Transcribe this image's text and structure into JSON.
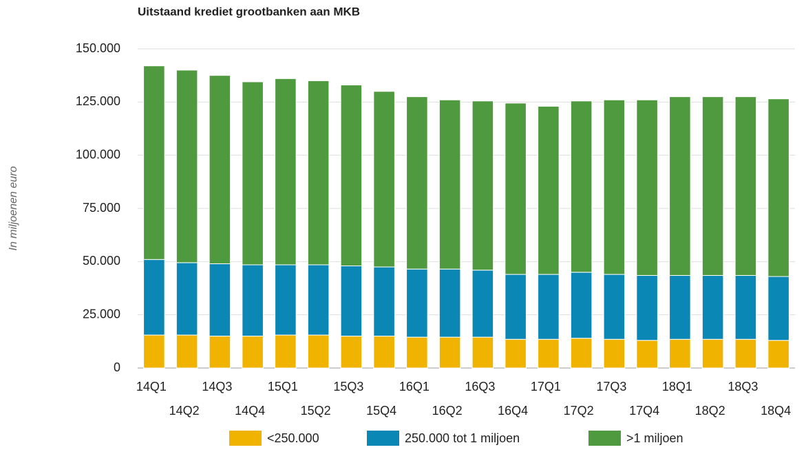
{
  "chart_data": {
    "type": "stacked_bar",
    "title": "Uitstaand krediet grootbanken aan MKB",
    "y_label": "In miljoenen euro",
    "categories": [
      "14Q1",
      "14Q2",
      "14Q3",
      "14Q4",
      "15Q1",
      "15Q2",
      "15Q3",
      "15Q4",
      "16Q1",
      "16Q2",
      "16Q3",
      "16Q4",
      "17Q1",
      "17Q2",
      "17Q3",
      "17Q4",
      "18Q1",
      "18Q2",
      "18Q3",
      "18Q4"
    ],
    "series": [
      {
        "name": "<250.000",
        "color": "#f0b400",
        "values": [
          15500,
          15500,
          15000,
          15000,
          15500,
          15500,
          15000,
          15000,
          14500,
          14500,
          14500,
          13500,
          13500,
          14000,
          13500,
          13000,
          13500,
          13500,
          13500,
          13000
        ]
      },
      {
        "name": "250.000 tot 1 miljoen",
        "color": "#0a87b5",
        "values": [
          35500,
          34000,
          34000,
          33500,
          33000,
          33000,
          33000,
          32500,
          32000,
          32000,
          31500,
          30500,
          30500,
          31000,
          30500,
          30500,
          30000,
          30000,
          30000,
          30000
        ]
      },
      {
        "name": ">1 miljoen",
        "color": "#4f9a3f",
        "values": [
          91000,
          90500,
          88500,
          86000,
          87500,
          86500,
          85000,
          82500,
          81000,
          79500,
          79500,
          80500,
          79000,
          80500,
          82000,
          82500,
          84000,
          84000,
          84000,
          83500
        ]
      }
    ],
    "ylim": [
      0,
      150000
    ],
    "yticks": [
      0,
      {
        "value": 25000,
        "label": "25.000"
      },
      {
        "value": 50000,
        "label": "50.000"
      },
      {
        "value": 75000,
        "label": "75.000"
      },
      {
        "value": 100000,
        "label": "100.000"
      },
      {
        "value": 125000,
        "label": "125.000"
      },
      {
        "value": 150000,
        "label": "150.000"
      }
    ],
    "grid": true,
    "legend": "bottom"
  }
}
